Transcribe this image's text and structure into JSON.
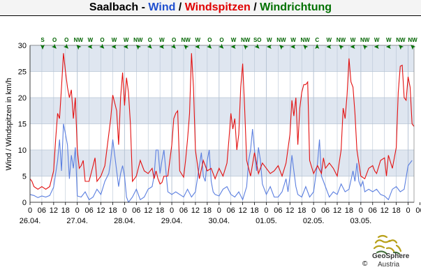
{
  "title": {
    "station": "Saalbach",
    "sep1": " - ",
    "wind": "Wind",
    "sep2": " / ",
    "gusts": "Windspitzen",
    "sep3": " / ",
    "direction": "Windrichtung"
  },
  "colors": {
    "wind": "#1f4fcf",
    "gusts": "#e00000",
    "direction": "#007000",
    "wind_line": "#5b7fe0",
    "gust_line": "#e31010",
    "band": "#dfe6f0",
    "grid": "#b7c4d4"
  },
  "logo": {
    "name": "GeoSphere",
    "country": "Austria",
    "copyright": "©"
  },
  "chart_data": {
    "type": "line",
    "ylabel": "Wind / Windspitzen in km/h",
    "ylim": [
      0,
      30
    ],
    "yticks": [
      0,
      5,
      10,
      15,
      20,
      25,
      30
    ],
    "x_hour_range": [
      0,
      195
    ],
    "hour_ticks": [
      "0",
      "06",
      "12",
      "18",
      "0",
      "06",
      "12",
      "18",
      "0",
      "06",
      "12",
      "18",
      "0",
      "06",
      "12",
      "18",
      "0",
      "06",
      "12",
      "18",
      "0",
      "06",
      "12",
      "18",
      "0",
      "06",
      "12",
      "18",
      "0",
      "06",
      "12",
      "18",
      "0",
      "06",
      "12"
    ],
    "date_labels": [
      "26.04.",
      "27.04.",
      "28.04.",
      "29.04.",
      "30.04.",
      "01.05.",
      "02.05.",
      "03.05."
    ],
    "directions": [
      "S",
      "O",
      "O",
      "NW",
      "W",
      "O",
      "W",
      "W",
      "NW",
      "O",
      "W",
      "O",
      "NW",
      "W",
      "O",
      "O",
      "W",
      "NW",
      "SO",
      "W",
      "NW",
      "W",
      "NW",
      "C",
      "W",
      "NW",
      "W",
      "NW",
      "W",
      "W",
      "NW",
      "NW"
    ],
    "direction_arrow_angles": [
      180,
      135,
      135,
      315,
      270,
      135,
      270,
      270,
      315,
      135,
      270,
      135,
      315,
      270,
      135,
      135,
      270,
      315,
      135,
      270,
      315,
      270,
      315,
      0,
      270,
      315,
      270,
      315,
      270,
      270,
      315,
      315
    ],
    "series": [
      {
        "name": "Wind",
        "color": "#5b7fe0",
        "points": [
          [
            0,
            1.5
          ],
          [
            2,
            1.3
          ],
          [
            4,
            0.9
          ],
          [
            6,
            1.2
          ],
          [
            8,
            1.0
          ],
          [
            10,
            1.3
          ],
          [
            12,
            2.9
          ],
          [
            14,
            8.0
          ],
          [
            15,
            12.0
          ],
          [
            16,
            6.0
          ],
          [
            17,
            15.0
          ],
          [
            18,
            13.0
          ],
          [
            19,
            11.0
          ],
          [
            20,
            4.5
          ],
          [
            21,
            9.0
          ],
          [
            22,
            6.5
          ],
          [
            23,
            10.5
          ],
          [
            24,
            1.2
          ],
          [
            26,
            1.0
          ],
          [
            28,
            2.0
          ],
          [
            30,
            0.5
          ],
          [
            32,
            1.0
          ],
          [
            34,
            2.5
          ],
          [
            36,
            1.5
          ],
          [
            38,
            4.0
          ],
          [
            40,
            5.5
          ],
          [
            41,
            8.0
          ],
          [
            42,
            12.0
          ],
          [
            43,
            9.0
          ],
          [
            44,
            6.0
          ],
          [
            45,
            3.0
          ],
          [
            46,
            5.5
          ],
          [
            47,
            7.0
          ],
          [
            48,
            5.0
          ],
          [
            49,
            1.0
          ],
          [
            50,
            0.0
          ],
          [
            52,
            1.0
          ],
          [
            54,
            2.5
          ],
          [
            56,
            0.5
          ],
          [
            58,
            1.0
          ],
          [
            60,
            2.5
          ],
          [
            62,
            3.0
          ],
          [
            63,
            5.0
          ],
          [
            64,
            10.0
          ],
          [
            65,
            10.0
          ],
          [
            66,
            5.5
          ],
          [
            67,
            8.0
          ],
          [
            68,
            10.0
          ],
          [
            70,
            2.0
          ],
          [
            72,
            1.5
          ],
          [
            74,
            2.0
          ],
          [
            76,
            1.5
          ],
          [
            78,
            1.0
          ],
          [
            80,
            2.5
          ],
          [
            82,
            1.0
          ],
          [
            84,
            2.0
          ],
          [
            85,
            4.5
          ],
          [
            86,
            7.0
          ],
          [
            87,
            9.5
          ],
          [
            88,
            5.0
          ],
          [
            89,
            4.0
          ],
          [
            90,
            8.0
          ],
          [
            91,
            10.0
          ],
          [
            92,
            4.0
          ],
          [
            93,
            2.0
          ],
          [
            94,
            1.5
          ],
          [
            96,
            1.2
          ],
          [
            98,
            2.5
          ],
          [
            100,
            3.0
          ],
          [
            102,
            1.5
          ],
          [
            104,
            1.0
          ],
          [
            106,
            2.0
          ],
          [
            108,
            0.5
          ],
          [
            110,
            3.0
          ],
          [
            111,
            8.0
          ],
          [
            112,
            10.0
          ],
          [
            113,
            14.0
          ],
          [
            114,
            10.0
          ],
          [
            115,
            6.0
          ],
          [
            116,
            10.5
          ],
          [
            117,
            8.0
          ],
          [
            118,
            3.5
          ],
          [
            120,
            1.5
          ],
          [
            122,
            3.0
          ],
          [
            124,
            1.0
          ],
          [
            126,
            1.0
          ],
          [
            128,
            2.0
          ],
          [
            130,
            4.5
          ],
          [
            131,
            2.0
          ],
          [
            132,
            5.0
          ],
          [
            133,
            9.0
          ],
          [
            134,
            6.0
          ],
          [
            135,
            3.0
          ],
          [
            136,
            1.5
          ],
          [
            138,
            1.0
          ],
          [
            140,
            3.0
          ],
          [
            142,
            1.0
          ],
          [
            144,
            2.0
          ],
          [
            146,
            7.5
          ],
          [
            147,
            12.0
          ],
          [
            148,
            5.0
          ],
          [
            149,
            4.0
          ],
          [
            150,
            3.0
          ],
          [
            152,
            1.0
          ],
          [
            154,
            2.0
          ],
          [
            156,
            1.5
          ],
          [
            158,
            3.5
          ],
          [
            160,
            2.0
          ],
          [
            162,
            2.5
          ],
          [
            164,
            6.0
          ],
          [
            165,
            4.0
          ],
          [
            166,
            7.5
          ],
          [
            167,
            4.0
          ],
          [
            168,
            3.0
          ],
          [
            169,
            4.0
          ],
          [
            170,
            2.0
          ],
          [
            172,
            2.5
          ],
          [
            174,
            2.0
          ],
          [
            176,
            2.5
          ],
          [
            178,
            1.5
          ],
          [
            180,
            1.2
          ],
          [
            182,
            0.5
          ],
          [
            184,
            2.5
          ],
          [
            186,
            3.0
          ],
          [
            188,
            2.0
          ],
          [
            190,
            2.5
          ],
          [
            192,
            7.0
          ],
          [
            194,
            8.0
          ]
        ]
      },
      {
        "name": "Windspitzen",
        "color": "#e31010",
        "points": [
          [
            0,
            4.5
          ],
          [
            1,
            4.0
          ],
          [
            2,
            3.0
          ],
          [
            4,
            2.5
          ],
          [
            6,
            3.0
          ],
          [
            8,
            2.5
          ],
          [
            10,
            3.0
          ],
          [
            12,
            6.0
          ],
          [
            13,
            12.0
          ],
          [
            14,
            17.0
          ],
          [
            15,
            16.0
          ],
          [
            16,
            22.0
          ],
          [
            17,
            28.5
          ],
          [
            18,
            25.0
          ],
          [
            19,
            22.0
          ],
          [
            20,
            20.0
          ],
          [
            21,
            21.5
          ],
          [
            22,
            16.0
          ],
          [
            23,
            20.0
          ],
          [
            24,
            10.0
          ],
          [
            25,
            6.5
          ],
          [
            26,
            7.0
          ],
          [
            27,
            8.0
          ],
          [
            28,
            4.0
          ],
          [
            30,
            4.0
          ],
          [
            32,
            7.0
          ],
          [
            33,
            8.5
          ],
          [
            34,
            4.0
          ],
          [
            36,
            5.0
          ],
          [
            38,
            7.0
          ],
          [
            39,
            10.0
          ],
          [
            40,
            13.0
          ],
          [
            41,
            16.0
          ],
          [
            42,
            20.5
          ],
          [
            43,
            19.0
          ],
          [
            44,
            17.5
          ],
          [
            45,
            11.0
          ],
          [
            46,
            20.0
          ],
          [
            47,
            24.8
          ],
          [
            48,
            18.5
          ],
          [
            49,
            23.8
          ],
          [
            50,
            21.0
          ],
          [
            51,
            15.0
          ],
          [
            52,
            4.0
          ],
          [
            54,
            5.0
          ],
          [
            56,
            8.0
          ],
          [
            58,
            6.0
          ],
          [
            60,
            5.5
          ],
          [
            62,
            6.5
          ],
          [
            63,
            4.5
          ],
          [
            64,
            6.0
          ],
          [
            65,
            4.5
          ],
          [
            66,
            3.5
          ],
          [
            67,
            3.8
          ],
          [
            68,
            5.0
          ],
          [
            70,
            5.0
          ],
          [
            72,
            11.0
          ],
          [
            73,
            16.0
          ],
          [
            74,
            17.0
          ],
          [
            75,
            17.5
          ],
          [
            76,
            6.0
          ],
          [
            78,
            4.8
          ],
          [
            79,
            8.0
          ],
          [
            80,
            12.0
          ],
          [
            81,
            17.0
          ],
          [
            82,
            28.5
          ],
          [
            83,
            22.0
          ],
          [
            84,
            10.0
          ],
          [
            86,
            4.5
          ],
          [
            88,
            8.0
          ],
          [
            90,
            6.0
          ],
          [
            92,
            6.5
          ],
          [
            94,
            4.5
          ],
          [
            96,
            6.5
          ],
          [
            98,
            5.0
          ],
          [
            100,
            7.5
          ],
          [
            101,
            12.0
          ],
          [
            102,
            17.0
          ],
          [
            103,
            14.0
          ],
          [
            104,
            16.0
          ],
          [
            105,
            10.0
          ],
          [
            106,
            13.0
          ],
          [
            107,
            22.0
          ],
          [
            108,
            26.5
          ],
          [
            109,
            18.0
          ],
          [
            110,
            8.0
          ],
          [
            112,
            5.0
          ],
          [
            114,
            9.5
          ],
          [
            116,
            5.5
          ],
          [
            118,
            7.5
          ],
          [
            120,
            6.5
          ],
          [
            122,
            5.5
          ],
          [
            124,
            6.0
          ],
          [
            126,
            7.0
          ],
          [
            128,
            5.0
          ],
          [
            130,
            7.5
          ],
          [
            132,
            13.0
          ],
          [
            133,
            19.5
          ],
          [
            134,
            16.5
          ],
          [
            135,
            20.0
          ],
          [
            136,
            11.0
          ],
          [
            137,
            18.0
          ],
          [
            138,
            21.0
          ],
          [
            139,
            22.5
          ],
          [
            140,
            22.5
          ],
          [
            141,
            23.0
          ],
          [
            142,
            8.0
          ],
          [
            144,
            5.5
          ],
          [
            146,
            7.0
          ],
          [
            148,
            5.5
          ],
          [
            149,
            8.5
          ],
          [
            150,
            6.5
          ],
          [
            152,
            7.5
          ],
          [
            154,
            6.5
          ],
          [
            156,
            5.0
          ],
          [
            158,
            10.0
          ],
          [
            159,
            18.0
          ],
          [
            160,
            16.0
          ],
          [
            161,
            20.5
          ],
          [
            162,
            27.5
          ],
          [
            163,
            23.0
          ],
          [
            164,
            22.0
          ],
          [
            165,
            17.0
          ],
          [
            166,
            10.0
          ],
          [
            168,
            5.0
          ],
          [
            170,
            4.5
          ],
          [
            172,
            6.5
          ],
          [
            174,
            7.0
          ],
          [
            175,
            6.0
          ],
          [
            176,
            5.5
          ],
          [
            178,
            8.0
          ],
          [
            180,
            8.5
          ],
          [
            181,
            5.0
          ],
          [
            182,
            9.0
          ],
          [
            184,
            6.5
          ],
          [
            186,
            10.5
          ],
          [
            187,
            21.0
          ],
          [
            188,
            26.0
          ],
          [
            189,
            26.2
          ],
          [
            190,
            20.0
          ],
          [
            191,
            19.5
          ],
          [
            192,
            24.0
          ],
          [
            193,
            22.0
          ],
          [
            194,
            15.0
          ],
          [
            195,
            14.5
          ]
        ]
      }
    ]
  }
}
